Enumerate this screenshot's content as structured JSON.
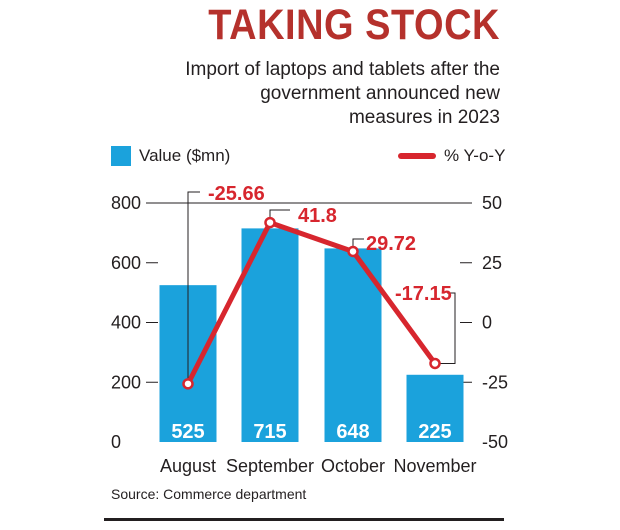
{
  "header": {
    "title": "TAKING STOCK",
    "subtitle_lines": [
      "Import of laptops and tablets after the",
      "government announced new",
      "measures in 2023"
    ]
  },
  "legend": {
    "bar_label": "Value ($mn)",
    "line_label": "% Y-o-Y"
  },
  "colors": {
    "bar": "#1ba2dc",
    "line": "#d7262e",
    "bar_text": "#ffffff"
  },
  "source": "Source: Commerce department",
  "chart_data": {
    "type": "bar",
    "categories": [
      "August",
      "September",
      "October",
      "November"
    ],
    "series": [
      {
        "name": "Value ($mn)",
        "type": "bar",
        "axis": "left",
        "values": [
          525,
          715,
          648,
          225
        ]
      },
      {
        "name": "% Y-o-Y",
        "type": "line",
        "axis": "right",
        "values": [
          -25.66,
          41.8,
          29.72,
          -17.15
        ]
      }
    ],
    "bar_labels": [
      "525",
      "715",
      "648",
      "225"
    ],
    "line_labels": [
      "-25.66",
      "41.8",
      "29.72",
      "-17.15"
    ],
    "y_left": {
      "min": 0,
      "max": 800,
      "ticks": [
        0,
        200,
        400,
        600,
        800
      ],
      "tick_labels": [
        "0",
        "200",
        "400",
        "600",
        "800"
      ]
    },
    "y_right": {
      "min": -50,
      "max": 50,
      "ticks": [
        -50,
        -25,
        0,
        25,
        50
      ],
      "tick_labels": [
        "-50",
        "-25",
        "0",
        "25",
        "50"
      ]
    },
    "grid": "top-line"
  }
}
